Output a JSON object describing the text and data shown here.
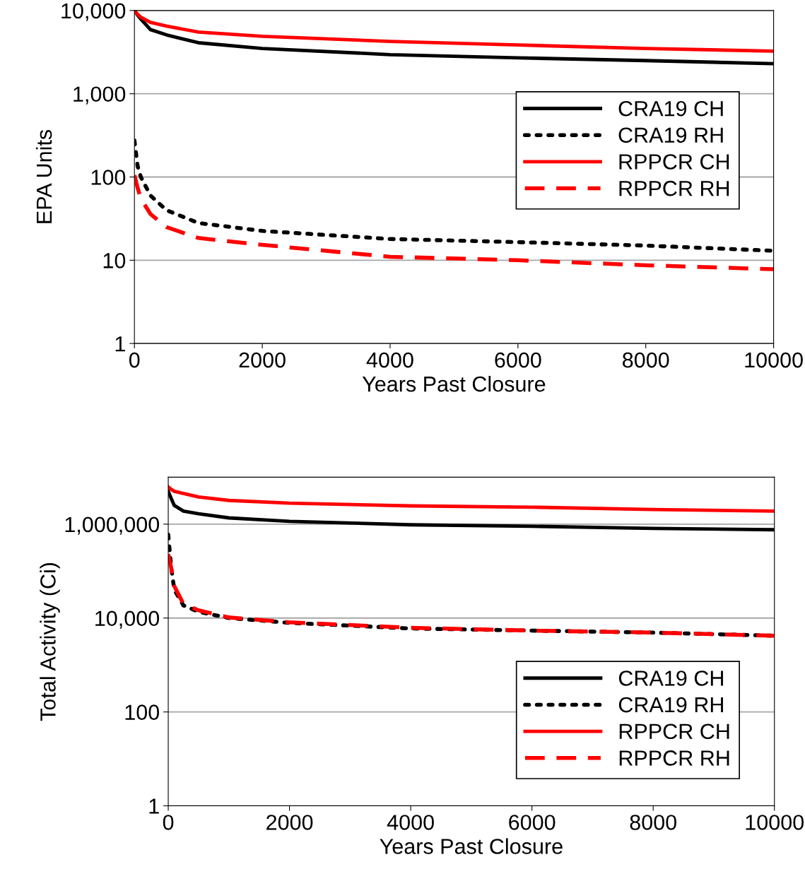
{
  "chart_data": [
    {
      "type": "line",
      "xlabel": "Years Past Closure",
      "ylabel": "EPA Units",
      "log": "y",
      "grid": "y",
      "legend": "right",
      "xlim": [
        0,
        10000
      ],
      "xticks": [
        0,
        2000,
        4000,
        6000,
        8000,
        10000
      ],
      "ylim": [
        1,
        10000
      ],
      "yticks": [
        1,
        10,
        100,
        {
          "value": 1000,
          "label": "1,000"
        },
        {
          "value": 10000,
          "label": "10,000"
        }
      ],
      "x": [
        0,
        50,
        100,
        250,
        500,
        1000,
        2000,
        4000,
        6000,
        8000,
        10000
      ],
      "series": [
        {
          "name": "CRA19 CH",
          "color": "#000000",
          "line_style": "solid",
          "values": [
            10000,
            8800,
            7900,
            5900,
            5100,
            4100,
            3500,
            2950,
            2700,
            2500,
            2300
          ]
        },
        {
          "name": "CRA19 RH",
          "color": "#000000",
          "line_style": "dotted",
          "values": [
            275,
            135,
            100,
            60,
            40,
            28,
            22.5,
            18,
            16.5,
            15,
            13
          ]
        },
        {
          "name": "RPPCR CH",
          "color": "#ff0000",
          "line_style": "solid",
          "values": [
            10000,
            9000,
            8300,
            7200,
            6500,
            5500,
            4900,
            4250,
            3850,
            3500,
            3250
          ]
        },
        {
          "name": "RPPCR RH",
          "color": "#ff0000",
          "line_style": "dashed",
          "values": [
            105,
            74,
            55,
            36,
            25,
            18.5,
            15.3,
            11,
            10,
            8.7,
            7.8
          ]
        }
      ]
    },
    {
      "type": "line",
      "xlabel": "Years Past Closure",
      "ylabel": "Total Activity (Ci)",
      "log": "y",
      "grid": "y",
      "legend": "lower right",
      "xlim": [
        0,
        10000
      ],
      "xticks": [
        0,
        2000,
        4000,
        6000,
        8000,
        10000
      ],
      "ylim": [
        1,
        10000000
      ],
      "yticks": [
        1,
        100,
        {
          "value": 10000,
          "label": "10,000"
        },
        {
          "value": 1000000,
          "label": "1,000,000"
        }
      ],
      "x": [
        0,
        50,
        100,
        250,
        500,
        1000,
        2000,
        4000,
        6000,
        8000,
        10000
      ],
      "series": [
        {
          "name": "CRA19 CH",
          "color": "#000000",
          "line_style": "solid",
          "values": [
            5000000,
            3500000,
            2500000,
            1900000,
            1670000,
            1360000,
            1150000,
            970000,
            900000,
            810000,
            760000
          ]
        },
        {
          "name": "CRA19 RH",
          "color": "#000000",
          "line_style": "dotted",
          "values": [
            600000,
            115000,
            40000,
            18600,
            13600,
            10000,
            7900,
            6000,
            5400,
            4900,
            4200
          ]
        },
        {
          "name": "RPPCR CH",
          "color": "#ff0000",
          "line_style": "solid",
          "values": [
            6200000,
            5500000,
            5000000,
            4500000,
            3800000,
            3200000,
            2800000,
            2450000,
            2300000,
            2050000,
            1900000
          ]
        },
        {
          "name": "RPPCR RH",
          "color": "#ff0000",
          "line_style": "dashed",
          "values": [
            230000,
            115000,
            48000,
            20000,
            14600,
            10300,
            8100,
            6200,
            5400,
            4900,
            4200
          ]
        }
      ]
    }
  ]
}
